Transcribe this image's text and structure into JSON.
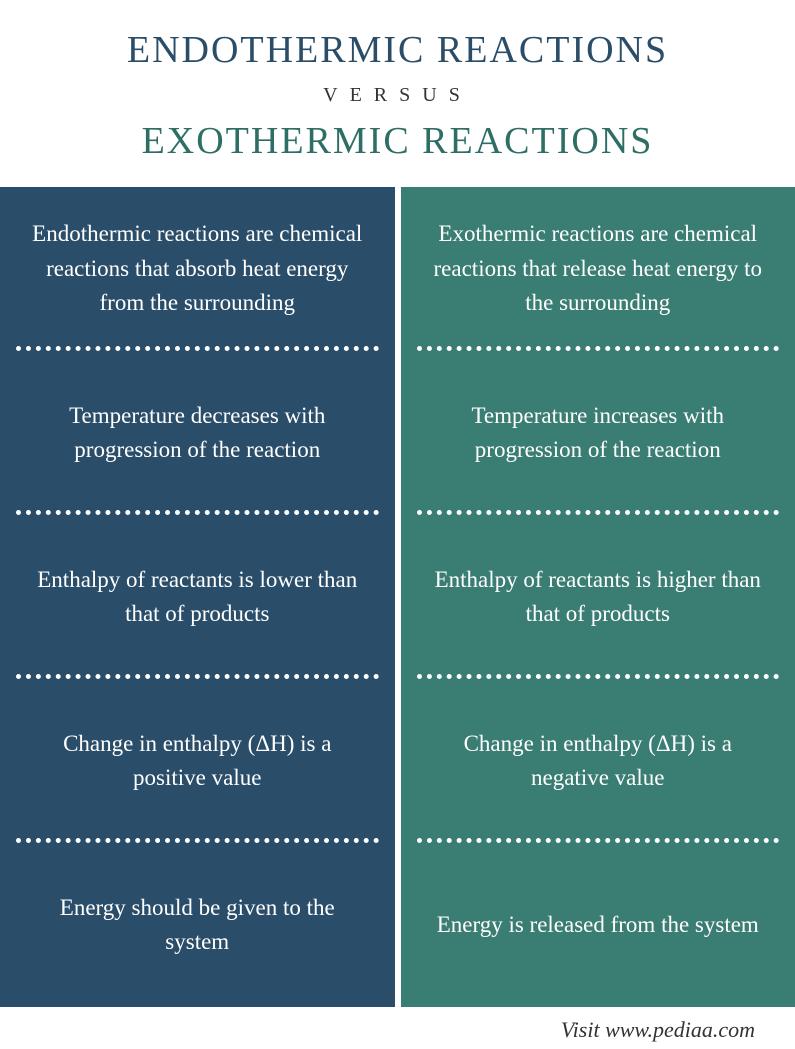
{
  "header": {
    "title_top": "ENDOTHERMIC  REACTIONS",
    "versus": "VERSUS",
    "title_bottom": "EXOTHERMIC REACTIONS",
    "title_top_color": "#2a4d69",
    "title_bottom_color": "#2e6e65"
  },
  "columns": {
    "left": {
      "bg_color": "#2a4d69",
      "cells": [
        "Endothermic reactions are chemical reactions that absorb heat energy from the surrounding",
        "Temperature decreases with progression of the reaction",
        "Enthalpy of reactants is lower than that of products",
        "Change in enthalpy (ΔH) is a positive value",
        "Energy should be given to the system"
      ]
    },
    "right": {
      "bg_color": "#3a7d73",
      "cells": [
        "Exothermic reactions are chemical reactions that release heat energy to the surrounding",
        "Temperature increases with progression of the reaction",
        "Enthalpy of reactants is higher than that of products",
        "Change in enthalpy (ΔH) is a negative value",
        "Energy is released from the system"
      ]
    }
  },
  "footer": {
    "text": "Visit www.pediaa.com"
  },
  "style": {
    "divider_color": "#ffffff",
    "text_color": "#ffffff",
    "cell_fontsize": 23,
    "title_fontsize": 38,
    "versus_fontsize": 20
  }
}
